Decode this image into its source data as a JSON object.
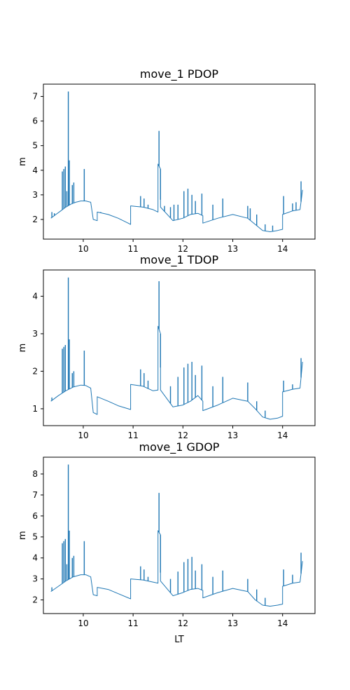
{
  "chart_data": [
    {
      "type": "line",
      "title": "move_1 PDOP",
      "xlabel": "",
      "ylabel": "m",
      "xlim": [
        9.2,
        14.65
      ],
      "ylim": [
        1.2,
        7.5
      ],
      "xticks": [
        10,
        11,
        12,
        13,
        14
      ],
      "yticks": [
        2,
        3,
        4,
        5,
        6,
        7
      ],
      "color": "#1f77b4",
      "grid": false,
      "series": [
        {
          "x": [
            9.35,
            9.45,
            9.55,
            9.65,
            9.75,
            9.85,
            9.95,
            10.05,
            10.15,
            10.2,
            10.28,
            10.28,
            10.5,
            10.7,
            10.9,
            10.95,
            10.95,
            11.2,
            11.4,
            11.5,
            11.5,
            11.55,
            11.55,
            11.8,
            12.0,
            12.15,
            12.3,
            12.4,
            12.4,
            12.7,
            13.0,
            13.3,
            13.45,
            13.6,
            13.75,
            13.9,
            14.0,
            14.0,
            14.2,
            14.35,
            14.4
          ],
          "y": [
            2.05,
            2.2,
            2.35,
            2.5,
            2.62,
            2.7,
            2.75,
            2.75,
            2.7,
            2.0,
            1.95,
            2.3,
            2.2,
            2.05,
            1.85,
            1.8,
            2.55,
            2.5,
            2.4,
            2.3,
            4.25,
            4.05,
            2.5,
            1.95,
            2.05,
            2.2,
            2.25,
            2.15,
            1.85,
            2.05,
            2.2,
            2.05,
            1.8,
            1.55,
            1.5,
            1.55,
            1.6,
            2.2,
            2.35,
            2.4,
            3.2
          ]
        }
      ],
      "spikes": [
        [
          9.37,
          2.3
        ],
        [
          9.42,
          2.25
        ],
        [
          9.58,
          3.95
        ],
        [
          9.61,
          4.05
        ],
        [
          9.64,
          4.15
        ],
        [
          9.67,
          3.15
        ],
        [
          9.7,
          7.2
        ],
        [
          9.72,
          4.4
        ],
        [
          9.78,
          3.4
        ],
        [
          9.81,
          3.5
        ],
        [
          10.02,
          4.05
        ],
        [
          10.35,
          2.3
        ],
        [
          10.5,
          2.2
        ],
        [
          11.15,
          2.95
        ],
        [
          11.22,
          2.85
        ],
        [
          11.3,
          2.6
        ],
        [
          11.52,
          5.6
        ],
        [
          11.55,
          2.8
        ],
        [
          11.63,
          2.55
        ],
        [
          11.75,
          2.5
        ],
        [
          11.82,
          2.6
        ],
        [
          11.9,
          2.6
        ],
        [
          12.02,
          3.15
        ],
        [
          12.1,
          3.25
        ],
        [
          12.18,
          3.0
        ],
        [
          12.25,
          2.75
        ],
        [
          12.38,
          3.05
        ],
        [
          12.6,
          2.6
        ],
        [
          12.8,
          2.85
        ],
        [
          13.3,
          2.55
        ],
        [
          13.35,
          2.45
        ],
        [
          13.48,
          2.2
        ],
        [
          13.65,
          1.8
        ],
        [
          13.8,
          1.75
        ],
        [
          14.02,
          2.95
        ],
        [
          14.2,
          2.65
        ],
        [
          14.27,
          2.7
        ],
        [
          14.37,
          3.55
        ]
      ]
    },
    {
      "type": "line",
      "title": "move_1 TDOP",
      "xlabel": "",
      "ylabel": "m",
      "xlim": [
        9.2,
        14.65
      ],
      "ylim": [
        0.55,
        4.7
      ],
      "xticks": [
        10,
        11,
        12,
        13,
        14
      ],
      "yticks": [
        1,
        2,
        3,
        4
      ],
      "color": "#1f77b4",
      "grid": false,
      "series": [
        {
          "x": [
            9.35,
            9.5,
            9.65,
            9.8,
            9.95,
            10.05,
            10.15,
            10.2,
            10.28,
            10.28,
            10.5,
            10.7,
            10.95,
            10.95,
            11.2,
            11.4,
            11.5,
            11.5,
            11.55,
            11.55,
            11.8,
            12.0,
            12.15,
            12.3,
            12.4,
            12.4,
            12.7,
            13.0,
            13.3,
            13.45,
            13.6,
            13.75,
            13.9,
            14.0,
            14.0,
            14.2,
            14.35,
            14.4
          ],
          "y": [
            1.2,
            1.35,
            1.48,
            1.58,
            1.63,
            1.62,
            1.55,
            0.9,
            0.85,
            1.32,
            1.2,
            1.08,
            0.98,
            1.65,
            1.6,
            1.48,
            1.5,
            3.2,
            3.0,
            1.5,
            1.05,
            1.1,
            1.2,
            1.35,
            1.2,
            0.95,
            1.1,
            1.28,
            1.2,
            1.0,
            0.78,
            0.72,
            0.75,
            0.8,
            1.45,
            1.52,
            1.55,
            2.25
          ]
        }
      ],
      "spikes": [
        [
          9.37,
          1.3
        ],
        [
          9.58,
          2.6
        ],
        [
          9.61,
          2.65
        ],
        [
          9.64,
          2.7
        ],
        [
          9.7,
          4.5
        ],
        [
          9.72,
          2.85
        ],
        [
          9.78,
          1.95
        ],
        [
          9.81,
          2.0
        ],
        [
          10.02,
          2.55
        ],
        [
          11.15,
          2.05
        ],
        [
          11.22,
          1.95
        ],
        [
          11.3,
          1.75
        ],
        [
          11.52,
          4.4
        ],
        [
          11.55,
          2.1
        ],
        [
          11.75,
          1.6
        ],
        [
          11.9,
          1.85
        ],
        [
          12.02,
          2.1
        ],
        [
          12.1,
          2.2
        ],
        [
          12.18,
          2.25
        ],
        [
          12.25,
          1.9
        ],
        [
          12.38,
          2.15
        ],
        [
          12.6,
          1.6
        ],
        [
          12.8,
          1.85
        ],
        [
          13.3,
          1.7
        ],
        [
          13.48,
          1.2
        ],
        [
          13.65,
          0.95
        ],
        [
          14.02,
          1.75
        ],
        [
          14.2,
          1.65
        ],
        [
          14.37,
          2.35
        ]
      ]
    },
    {
      "type": "line",
      "title": "move_1 GDOP",
      "xlabel": "LT",
      "ylabel": "m",
      "xlim": [
        9.2,
        14.65
      ],
      "ylim": [
        1.35,
        8.8
      ],
      "xticks": [
        10,
        11,
        12,
        13,
        14
      ],
      "yticks": [
        2,
        3,
        4,
        5,
        6,
        7,
        8
      ],
      "color": "#1f77b4",
      "grid": false,
      "series": [
        {
          "x": [
            9.35,
            9.5,
            9.65,
            9.8,
            9.95,
            10.05,
            10.15,
            10.2,
            10.28,
            10.28,
            10.5,
            10.7,
            10.95,
            10.95,
            11.2,
            11.4,
            11.5,
            11.5,
            11.55,
            11.55,
            11.8,
            12.0,
            12.15,
            12.3,
            12.4,
            12.4,
            12.7,
            13.0,
            13.3,
            13.45,
            13.6,
            13.75,
            13.9,
            14.0,
            14.0,
            14.2,
            14.35,
            14.4
          ],
          "y": [
            2.4,
            2.65,
            2.9,
            3.1,
            3.2,
            3.2,
            3.1,
            2.25,
            2.2,
            2.6,
            2.5,
            2.3,
            2.05,
            3.0,
            2.95,
            2.85,
            2.8,
            5.3,
            5.1,
            2.9,
            2.2,
            2.35,
            2.5,
            2.55,
            2.45,
            2.1,
            2.35,
            2.55,
            2.4,
            2.0,
            1.75,
            1.7,
            1.75,
            1.8,
            2.65,
            2.8,
            2.85,
            3.85
          ]
        }
      ],
      "spikes": [
        [
          9.37,
          2.6
        ],
        [
          9.58,
          4.7
        ],
        [
          9.61,
          4.8
        ],
        [
          9.64,
          4.9
        ],
        [
          9.67,
          3.7
        ],
        [
          9.7,
          8.45
        ],
        [
          9.72,
          5.3
        ],
        [
          9.78,
          4.0
        ],
        [
          9.81,
          4.1
        ],
        [
          10.02,
          4.8
        ],
        [
          11.15,
          3.6
        ],
        [
          11.22,
          3.45
        ],
        [
          11.3,
          3.1
        ],
        [
          11.52,
          7.1
        ],
        [
          11.55,
          3.3
        ],
        [
          11.75,
          3.0
        ],
        [
          11.9,
          3.35
        ],
        [
          12.02,
          3.8
        ],
        [
          12.1,
          3.95
        ],
        [
          12.18,
          4.05
        ],
        [
          12.25,
          3.4
        ],
        [
          12.38,
          3.7
        ],
        [
          12.6,
          3.1
        ],
        [
          12.8,
          3.4
        ],
        [
          13.3,
          3.0
        ],
        [
          13.48,
          2.5
        ],
        [
          13.65,
          2.1
        ],
        [
          14.02,
          3.45
        ],
        [
          14.2,
          3.2
        ],
        [
          14.37,
          4.25
        ]
      ]
    }
  ]
}
